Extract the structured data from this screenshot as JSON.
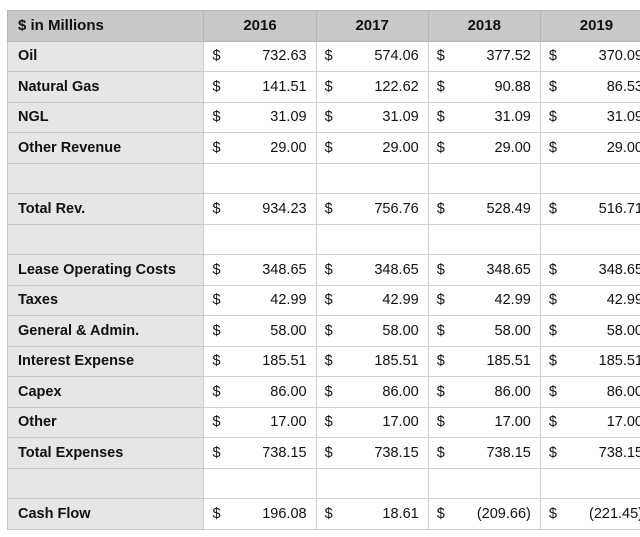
{
  "table": {
    "corner_label": "$ in Millions",
    "years": [
      "2016",
      "2017",
      "2018",
      "2019"
    ],
    "currency_symbol": "$",
    "rows": [
      {
        "label": "Oil",
        "values": [
          "732.63",
          "574.06",
          "377.52",
          "370.09"
        ]
      },
      {
        "label": "Natural Gas",
        "values": [
          "141.51",
          "122.62",
          "90.88",
          "86.53"
        ]
      },
      {
        "label": "NGL",
        "values": [
          "31.09",
          "31.09",
          "31.09",
          "31.09"
        ]
      },
      {
        "label": "Other Revenue",
        "values": [
          "29.00",
          "29.00",
          "29.00",
          "29.00"
        ]
      },
      {
        "label": "",
        "values": [
          "",
          "",
          "",
          ""
        ]
      },
      {
        "label": "Total Rev.",
        "values": [
          "934.23",
          "756.76",
          "528.49",
          "516.71"
        ]
      },
      {
        "label": "",
        "values": [
          "",
          "",
          "",
          ""
        ]
      },
      {
        "label": "Lease Operating Costs",
        "values": [
          "348.65",
          "348.65",
          "348.65",
          "348.65"
        ]
      },
      {
        "label": "Taxes",
        "values": [
          "42.99",
          "42.99",
          "42.99",
          "42.99"
        ]
      },
      {
        "label": "General & Admin.",
        "values": [
          "58.00",
          "58.00",
          "58.00",
          "58.00"
        ]
      },
      {
        "label": "Interest Expense",
        "values": [
          "185.51",
          "185.51",
          "185.51",
          "185.51"
        ]
      },
      {
        "label": "Capex",
        "values": [
          "86.00",
          "86.00",
          "86.00",
          "86.00"
        ]
      },
      {
        "label": "Other",
        "values": [
          "17.00",
          "17.00",
          "17.00",
          "17.00"
        ]
      },
      {
        "label": "Total Expenses",
        "values": [
          "738.15",
          "738.15",
          "738.15",
          "738.15"
        ]
      },
      {
        "label": "",
        "values": [
          "",
          "",
          "",
          ""
        ]
      },
      {
        "label": "Cash Flow",
        "values": [
          "196.08",
          "18.61",
          "(209.66)",
          "(221.45)"
        ]
      }
    ]
  }
}
